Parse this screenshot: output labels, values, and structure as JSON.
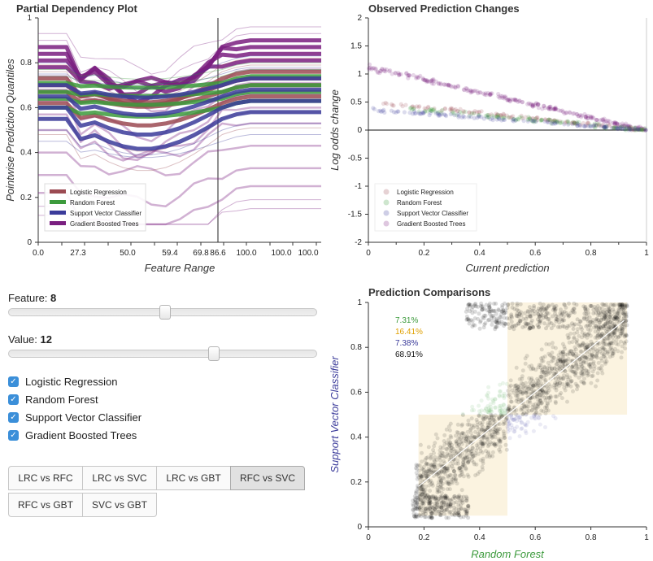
{
  "pdp": {
    "title": "Partial Dependency Plot",
    "ylabel": "Pointwise Prediction Quantiles",
    "xlabel": "Feature Range",
    "yticks": [
      "0",
      "0.2",
      "0.4",
      "0.6",
      "0.8",
      "1"
    ],
    "xticks": [
      "0.0",
      "27.3",
      "50.0",
      "59.4",
      "69.8",
      "86.6",
      "100.0",
      "100.0",
      "100.0"
    ],
    "legend": [
      "Logistic Regression",
      "Random Forest",
      "Support Vector Classifier",
      "Gradient Boosted Trees"
    ]
  },
  "opc": {
    "title": "Observed Prediction Changes",
    "ylabel": "Log odds change",
    "xlabel": "Current prediction",
    "yticks": [
      "2",
      "1.5",
      "1",
      "0.5",
      "0",
      "-0.5",
      "-1",
      "-1.5",
      "-2"
    ],
    "xticks": [
      "0",
      "0.2",
      "0.4",
      "0.6",
      "0.8",
      "1"
    ],
    "legend": [
      "Logistic Regression",
      "Random Forest",
      "Support Vector Classifier",
      "Gradient Boosted Trees"
    ]
  },
  "pc": {
    "title": "Prediction Comparisons",
    "ylabel": "Support Vector Classifier",
    "xlabel": "Random Forest",
    "yticks": [
      "0",
      "0.2",
      "0.4",
      "0.6",
      "0.8",
      "1"
    ],
    "xticks": [
      "0",
      "0.2",
      "0.4",
      "0.6",
      "0.8",
      "1"
    ],
    "percentages": [
      "7.31%",
      "16.41%",
      "7.38%",
      "68.91%"
    ]
  },
  "controls": {
    "feature_label": "Feature:",
    "feature_value": "8",
    "value_label": "Value:",
    "value_value": "12",
    "feature_slider_fraction": 0.51,
    "value_slider_fraction": 0.67,
    "checkboxes": [
      "Logistic Regression",
      "Random Forest",
      "Support Vector Classifier",
      "Gradient Boosted Trees"
    ],
    "buttons": [
      "LRC vs RFC",
      "LRC vs SVC",
      "LRC vs GBT",
      "RFC vs SVC",
      "RFC vs GBT",
      "SVC vs GBT"
    ],
    "active_button": "RFC vs SVC"
  },
  "colors": {
    "logistic": "#9b4a52",
    "forest": "#3c9a3c",
    "svc": "#3b3b9a",
    "gbt": "#7a1f80",
    "pct_green": "#3c9a3c",
    "pct_orange": "#e0a000",
    "pct_blue": "#3b3b9a",
    "pct_black": "#111111",
    "checkbox": "#3b8fd9"
  }
}
